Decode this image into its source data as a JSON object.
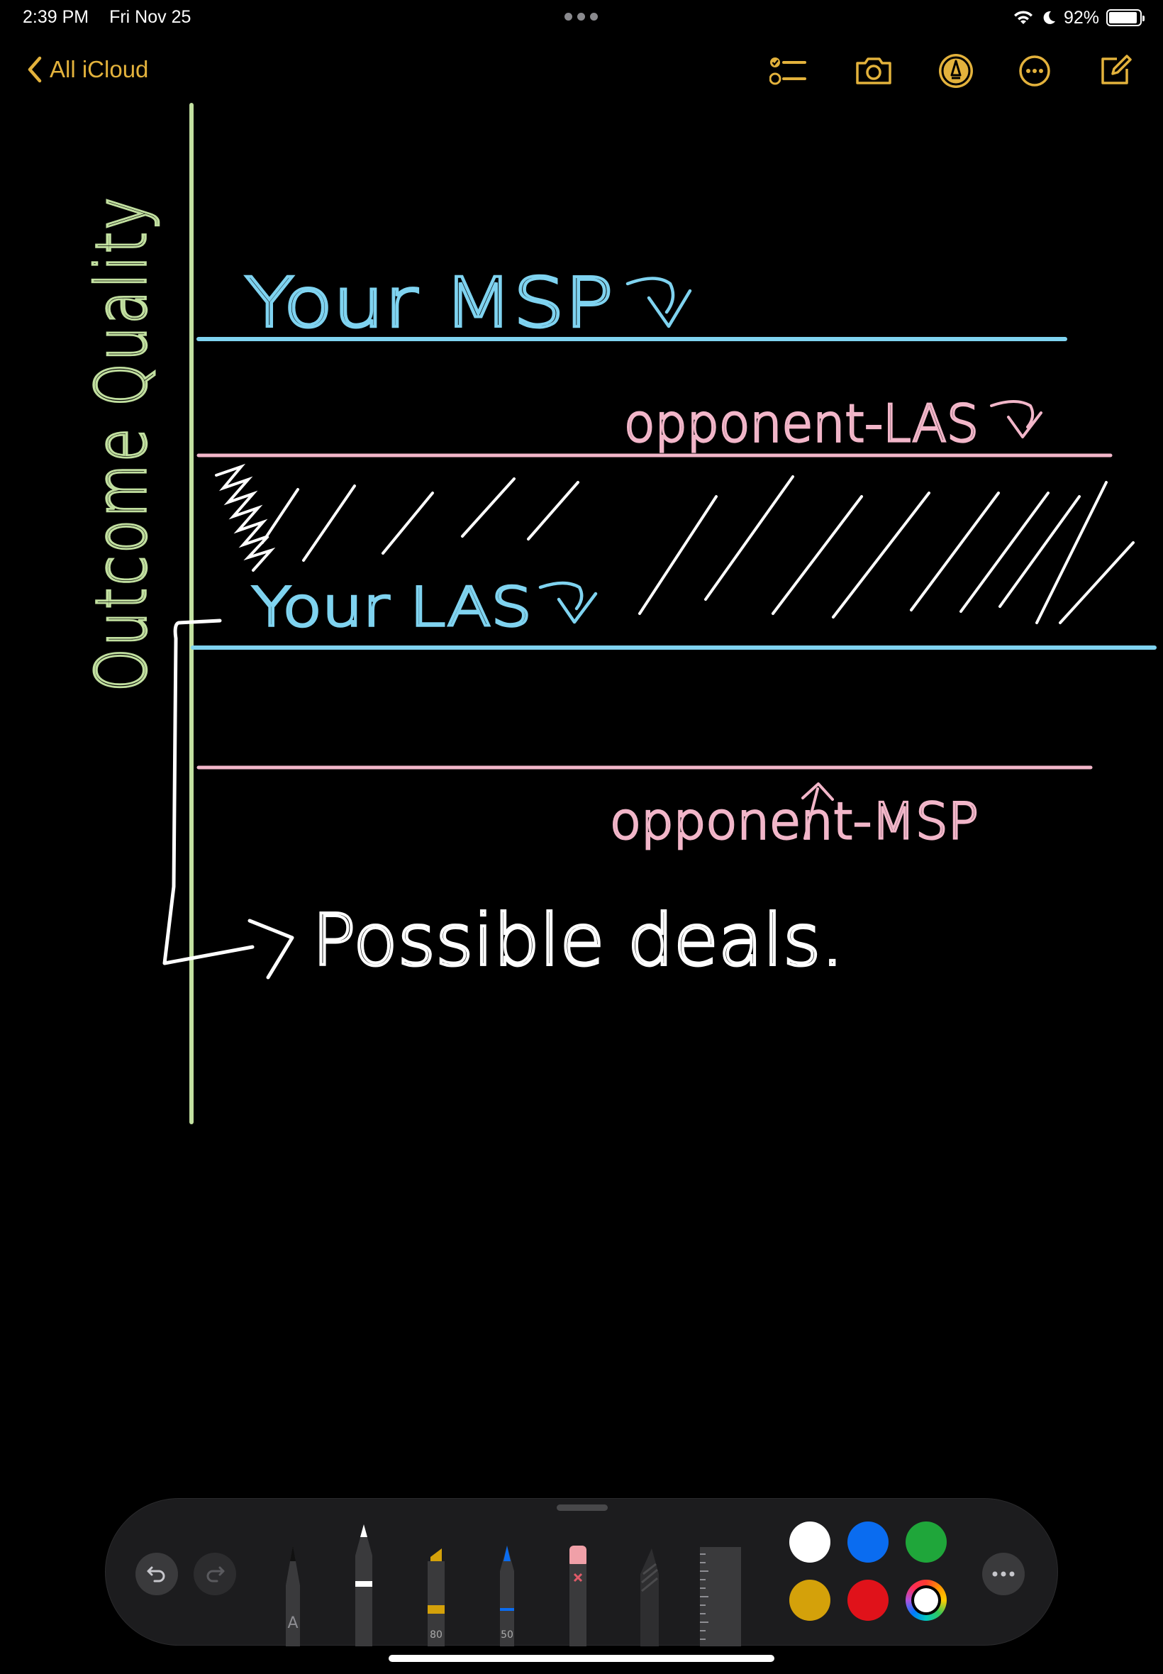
{
  "status_bar": {
    "time": "2:39 PM",
    "date": "Fri Nov 25",
    "battery_percent": "92%",
    "battery_level": 0.92
  },
  "nav": {
    "back_label": "All iCloud",
    "accent_color": "#e3b23c",
    "icons": [
      "checklist-icon",
      "camera-icon",
      "markup-icon",
      "more-icon",
      "compose-icon"
    ]
  },
  "note_drawing": {
    "y_axis_label": "Outcome Quality",
    "labels": {
      "your_msp": "Your MSP",
      "opponent_las": "opponent-LAS",
      "your_las": "Your LAS",
      "opponent_msp": "opponent-MSP",
      "possible_deals": "Possible deals."
    },
    "colors": {
      "axis": "#c2e0a0",
      "your_lines": "#7fd3f0",
      "opponent_lines": "#f2b6c9",
      "hatching": "#ffffff"
    }
  },
  "toolbar": {
    "tools": [
      "pen",
      "monoline",
      "marker",
      "pencil",
      "eraser",
      "crayon",
      "ruler"
    ],
    "marker_size": "80",
    "pencil_size": "50",
    "pen_letter": "A",
    "colors": [
      "#ffffff",
      "#0a6cf0",
      "#1fa63a",
      "#d4a10a",
      "#e0121a",
      "multicolor"
    ]
  }
}
